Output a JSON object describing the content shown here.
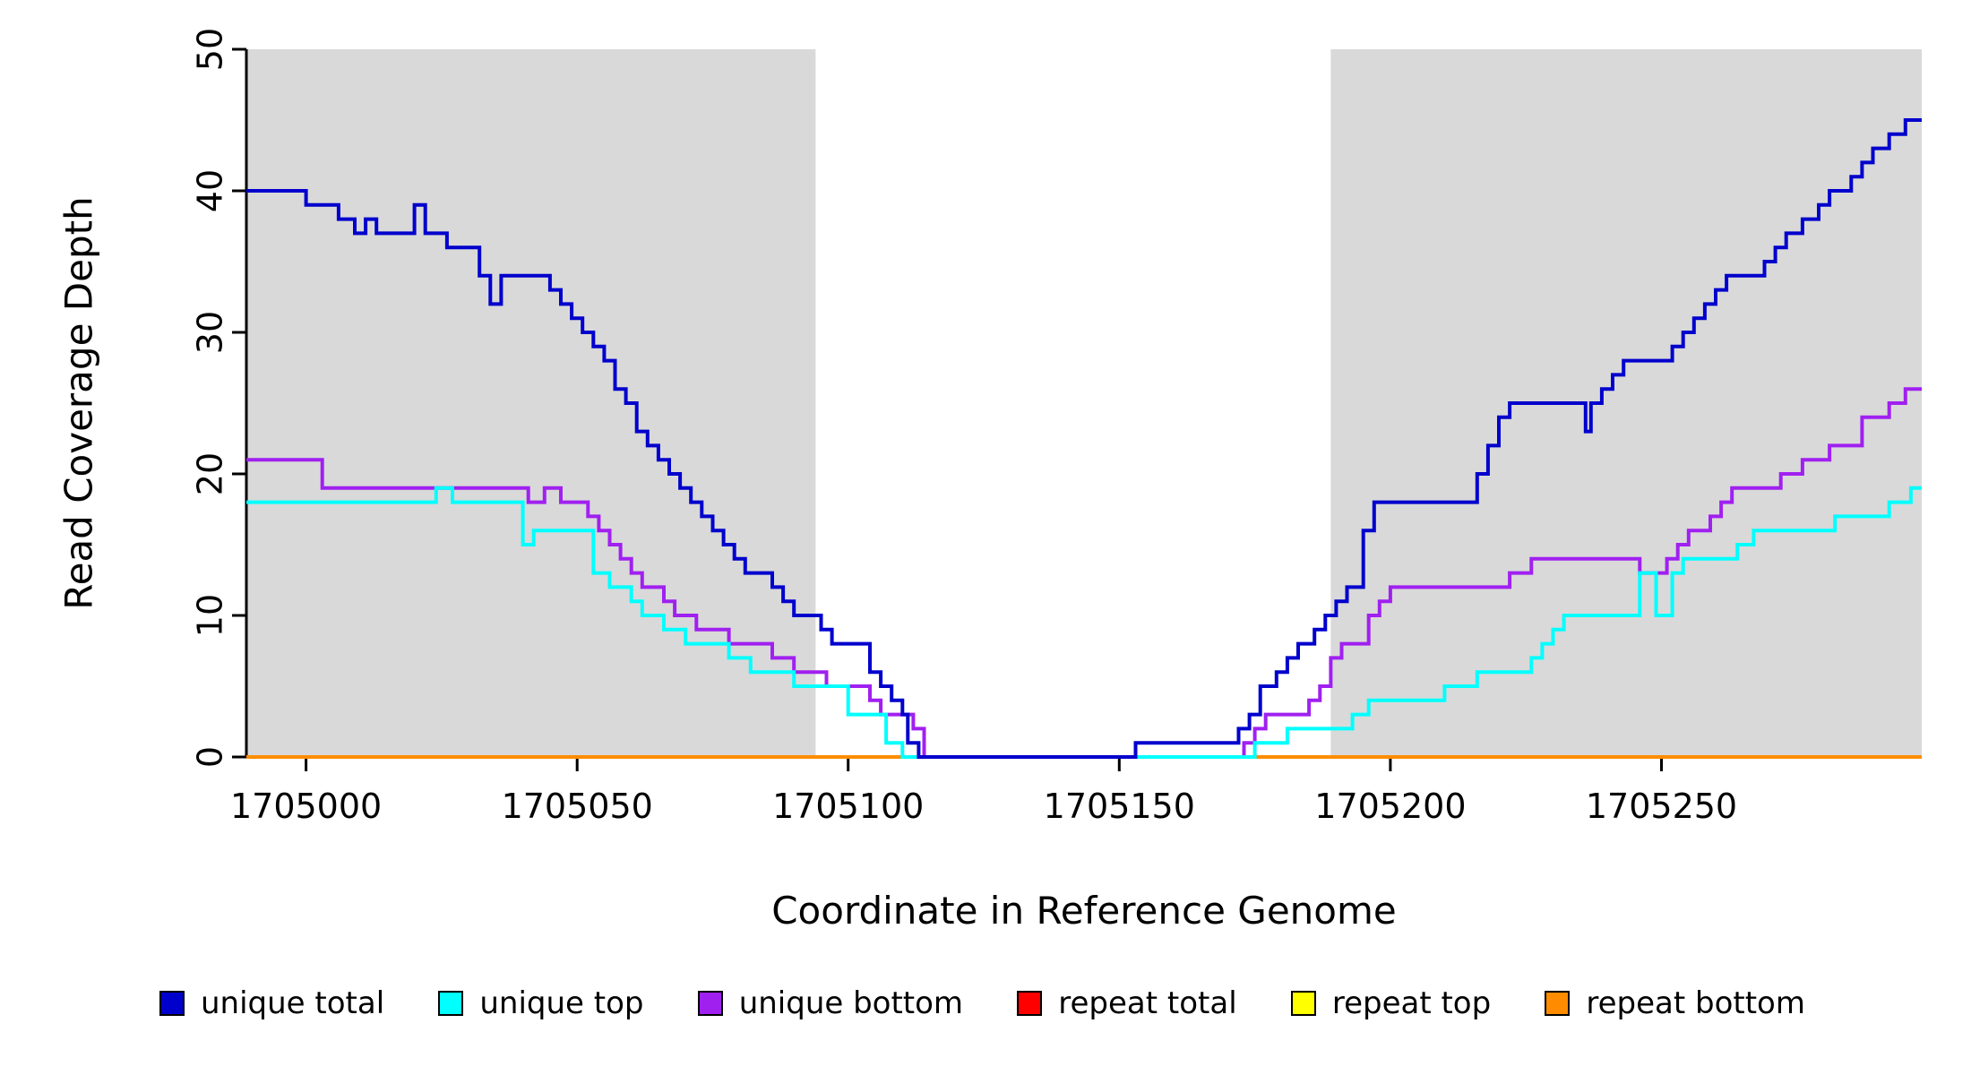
{
  "figure": {
    "background": "#ffffff",
    "shading_color": "#d9d9d9"
  },
  "chart_data": {
    "type": "line",
    "step": true,
    "title": "",
    "xlabel": "Coordinate in Reference Genome",
    "ylabel": "Read Coverage Depth",
    "xlim": [
      1704989,
      1705298
    ],
    "ylim": [
      0,
      50
    ],
    "x_ticks": [
      1705000,
      1705050,
      1705100,
      1705150,
      1705200,
      1705250
    ],
    "y_ticks": [
      0,
      10,
      20,
      30,
      40,
      50
    ],
    "grid": false,
    "legend_position": "bottom",
    "shaded_regions": [
      {
        "x0": 1704989,
        "x1": 1705094,
        "color": "#d9d9d9"
      },
      {
        "x0": 1705189,
        "x1": 1705298,
        "color": "#d9d9d9"
      }
    ],
    "series": [
      {
        "name": "repeat total",
        "color": "#ff0000",
        "points": [
          [
            1704989,
            0
          ],
          [
            1705298,
            0
          ]
        ]
      },
      {
        "name": "repeat top",
        "color": "#ffff00",
        "points": [
          [
            1704989,
            0
          ],
          [
            1705298,
            0
          ]
        ]
      },
      {
        "name": "repeat bottom",
        "color": "#ff8c00",
        "points": [
          [
            1704989,
            0
          ],
          [
            1705298,
            0
          ]
        ]
      },
      {
        "name": "unique bottom",
        "color": "#a020f0",
        "points": [
          [
            1704989,
            21
          ],
          [
            1705003,
            19
          ],
          [
            1705041,
            18
          ],
          [
            1705044,
            19
          ],
          [
            1705047,
            18
          ],
          [
            1705052,
            17
          ],
          [
            1705054,
            16
          ],
          [
            1705056,
            15
          ],
          [
            1705058,
            14
          ],
          [
            1705060,
            13
          ],
          [
            1705062,
            12
          ],
          [
            1705066,
            11
          ],
          [
            1705068,
            10
          ],
          [
            1705072,
            9
          ],
          [
            1705078,
            8
          ],
          [
            1705086,
            7
          ],
          [
            1705090,
            6
          ],
          [
            1705096,
            5
          ],
          [
            1705104,
            4
          ],
          [
            1705106,
            3
          ],
          [
            1705112,
            2
          ],
          [
            1705114,
            0
          ],
          [
            1705173,
            1
          ],
          [
            1705175,
            2
          ],
          [
            1705177,
            3
          ],
          [
            1705185,
            4
          ],
          [
            1705187,
            5
          ],
          [
            1705189,
            7
          ],
          [
            1705191,
            8
          ],
          [
            1705196,
            10
          ],
          [
            1705198,
            11
          ],
          [
            1705200,
            12
          ],
          [
            1705222,
            13
          ],
          [
            1705226,
            14
          ],
          [
            1705244,
            14
          ],
          [
            1705246,
            13
          ],
          [
            1705251,
            14
          ],
          [
            1705253,
            15
          ],
          [
            1705255,
            16
          ],
          [
            1705259,
            17
          ],
          [
            1705261,
            18
          ],
          [
            1705263,
            19
          ],
          [
            1705272,
            20
          ],
          [
            1705276,
            21
          ],
          [
            1705281,
            22
          ],
          [
            1705287,
            24
          ],
          [
            1705292,
            25
          ],
          [
            1705295,
            26
          ],
          [
            1705298,
            26
          ]
        ]
      },
      {
        "name": "unique top",
        "color": "#00ffff",
        "points": [
          [
            1704989,
            18
          ],
          [
            1705024,
            19
          ],
          [
            1705027,
            18
          ],
          [
            1705040,
            15
          ],
          [
            1705042,
            16
          ],
          [
            1705052,
            16
          ],
          [
            1705053,
            13
          ],
          [
            1705056,
            12
          ],
          [
            1705060,
            11
          ],
          [
            1705062,
            10
          ],
          [
            1705066,
            9
          ],
          [
            1705070,
            8
          ],
          [
            1705078,
            7
          ],
          [
            1705082,
            6
          ],
          [
            1705084,
            6
          ],
          [
            1705090,
            5
          ],
          [
            1705100,
            3
          ],
          [
            1705104,
            3
          ],
          [
            1705107,
            1
          ],
          [
            1705110,
            0
          ],
          [
            1705175,
            1
          ],
          [
            1705181,
            2
          ],
          [
            1705193,
            3
          ],
          [
            1705196,
            4
          ],
          [
            1705210,
            5
          ],
          [
            1705216,
            6
          ],
          [
            1705226,
            7
          ],
          [
            1705228,
            8
          ],
          [
            1705230,
            9
          ],
          [
            1705232,
            10
          ],
          [
            1705246,
            13
          ],
          [
            1705249,
            10
          ],
          [
            1705252,
            13
          ],
          [
            1705254,
            14
          ],
          [
            1705264,
            15
          ],
          [
            1705267,
            16
          ],
          [
            1705282,
            17
          ],
          [
            1705292,
            18
          ],
          [
            1705296,
            19
          ],
          [
            1705298,
            19
          ]
        ]
      },
      {
        "name": "unique total",
        "color": "#0000cd",
        "points": [
          [
            1704989,
            40
          ],
          [
            1705000,
            39
          ],
          [
            1705006,
            38
          ],
          [
            1705009,
            37
          ],
          [
            1705011,
            38
          ],
          [
            1705013,
            37
          ],
          [
            1705020,
            39
          ],
          [
            1705022,
            37
          ],
          [
            1705026,
            36
          ],
          [
            1705032,
            34
          ],
          [
            1705034,
            32
          ],
          [
            1705036,
            34
          ],
          [
            1705045,
            33
          ],
          [
            1705047,
            32
          ],
          [
            1705049,
            31
          ],
          [
            1705051,
            30
          ],
          [
            1705053,
            29
          ],
          [
            1705055,
            28
          ],
          [
            1705057,
            26
          ],
          [
            1705059,
            25
          ],
          [
            1705061,
            23
          ],
          [
            1705063,
            22
          ],
          [
            1705065,
            21
          ],
          [
            1705067,
            20
          ],
          [
            1705069,
            19
          ],
          [
            1705071,
            18
          ],
          [
            1705073,
            17
          ],
          [
            1705075,
            16
          ],
          [
            1705077,
            15
          ],
          [
            1705079,
            14
          ],
          [
            1705081,
            13
          ],
          [
            1705086,
            12
          ],
          [
            1705088,
            11
          ],
          [
            1705090,
            10
          ],
          [
            1705095,
            9
          ],
          [
            1705097,
            8
          ],
          [
            1705104,
            6
          ],
          [
            1705106,
            5
          ],
          [
            1705108,
            4
          ],
          [
            1705110,
            3
          ],
          [
            1705111,
            1
          ],
          [
            1705113,
            0
          ],
          [
            1705153,
            1
          ],
          [
            1705172,
            2
          ],
          [
            1705174,
            3
          ],
          [
            1705176,
            5
          ],
          [
            1705179,
            6
          ],
          [
            1705181,
            7
          ],
          [
            1705183,
            8
          ],
          [
            1705186,
            9
          ],
          [
            1705188,
            10
          ],
          [
            1705190,
            11
          ],
          [
            1705192,
            12
          ],
          [
            1705195,
            16
          ],
          [
            1705197,
            18
          ],
          [
            1705216,
            20
          ],
          [
            1705218,
            22
          ],
          [
            1705220,
            24
          ],
          [
            1705222,
            25
          ],
          [
            1705234,
            25
          ],
          [
            1705236,
            23
          ],
          [
            1705237,
            25
          ],
          [
            1705239,
            26
          ],
          [
            1705241,
            27
          ],
          [
            1705243,
            28
          ],
          [
            1705250,
            28
          ],
          [
            1705252,
            29
          ],
          [
            1705254,
            30
          ],
          [
            1705256,
            31
          ],
          [
            1705258,
            32
          ],
          [
            1705260,
            33
          ],
          [
            1705262,
            34
          ],
          [
            1705267,
            34
          ],
          [
            1705269,
            35
          ],
          [
            1705271,
            36
          ],
          [
            1705273,
            37
          ],
          [
            1705276,
            38
          ],
          [
            1705279,
            39
          ],
          [
            1705281,
            40
          ],
          [
            1705285,
            41
          ],
          [
            1705287,
            42
          ],
          [
            1705289,
            43
          ],
          [
            1705292,
            44
          ],
          [
            1705295,
            45
          ],
          [
            1705298,
            45
          ]
        ]
      }
    ],
    "legend": [
      {
        "label": "unique total",
        "color": "#0000cd"
      },
      {
        "label": "unique top",
        "color": "#00ffff"
      },
      {
        "label": "unique bottom",
        "color": "#a020f0"
      },
      {
        "label": "repeat total",
        "color": "#ff0000"
      },
      {
        "label": "repeat top",
        "color": "#ffff00"
      },
      {
        "label": "repeat bottom",
        "color": "#ff8c00"
      }
    ]
  }
}
